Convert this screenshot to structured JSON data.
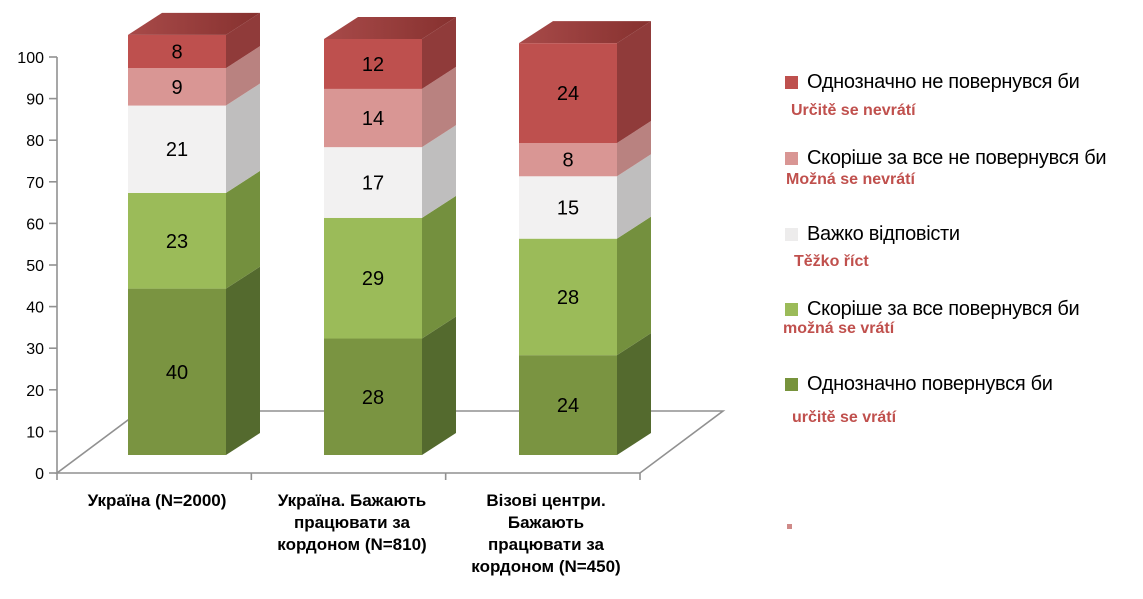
{
  "chart_data": {
    "type": "bar",
    "stacked": true,
    "effect": "3d",
    "title": "",
    "xlabel": "",
    "ylabel": "",
    "ylim": [
      0,
      100
    ],
    "ytick_step": 10,
    "yticks": [
      0,
      10,
      20,
      30,
      40,
      50,
      60,
      70,
      80,
      90,
      100
    ],
    "grid": false,
    "legend_position": "right",
    "categories": [
      "Україна (N=2000)",
      "Україна. Бажають\nпрацювати за\nкордоном (N=810)",
      "Візові центри.\nБажають\nпрацювати за\nкордоном (N=450)"
    ],
    "series": [
      {
        "name": "Однозначно повернувся би",
        "subtitle": "určitě se vrátí",
        "values": [
          40,
          28,
          24
        ],
        "color": "#7A9441",
        "side_color": "#546A2E"
      },
      {
        "name": "Скоріше за все повернувся би",
        "subtitle": "možná se vrátí",
        "values": [
          23,
          29,
          28
        ],
        "color": "#9BBB59",
        "side_color": "#74903E"
      },
      {
        "name": "Важко відповісти",
        "subtitle": "Těžko říct",
        "values": [
          21,
          17,
          15
        ],
        "color": "#F2F1F1",
        "side_color": "#BFBEBE"
      },
      {
        "name": "Скоріше за все не повернувся би",
        "subtitle": "Možná se nevrátí",
        "values": [
          9,
          14,
          8
        ],
        "color": "#D99694",
        "side_color": "#B98280"
      },
      {
        "name": "Однозначно не повернувся би",
        "subtitle": "Určitě se nevrátí",
        "values": [
          8,
          12,
          24
        ],
        "color": "#BE504E",
        "side_color": "#903B3A",
        "top_color_left": "#A84A49",
        "top_color_right": "#86312F"
      }
    ]
  },
  "legend": {
    "items": [
      {
        "label": "Однозначно не повернувся би",
        "subtitle": "Určitě se nevrátí",
        "color": "#BE504E"
      },
      {
        "label": "Скоріше за все не повернувся би",
        "subtitle": "Možná se nevrátí",
        "color": "#D99694"
      },
      {
        "label": "Важко відповісти",
        "subtitle": "Těžko říct",
        "color": "#EDECEC"
      },
      {
        "label": "Скоріше за все повернувся би",
        "subtitle": "možná se vrátí",
        "color": "#9BBB59"
      },
      {
        "label": "Однозначно повернувся би",
        "subtitle": "určitě se vrátí",
        "color": "#77933C"
      }
    ]
  },
  "colors": {
    "axis": "#919191",
    "tick_text": "#000000",
    "value_label": "#000000",
    "subtitle_text": "#C0504D",
    "stray_mark": "#CF8A88"
  }
}
